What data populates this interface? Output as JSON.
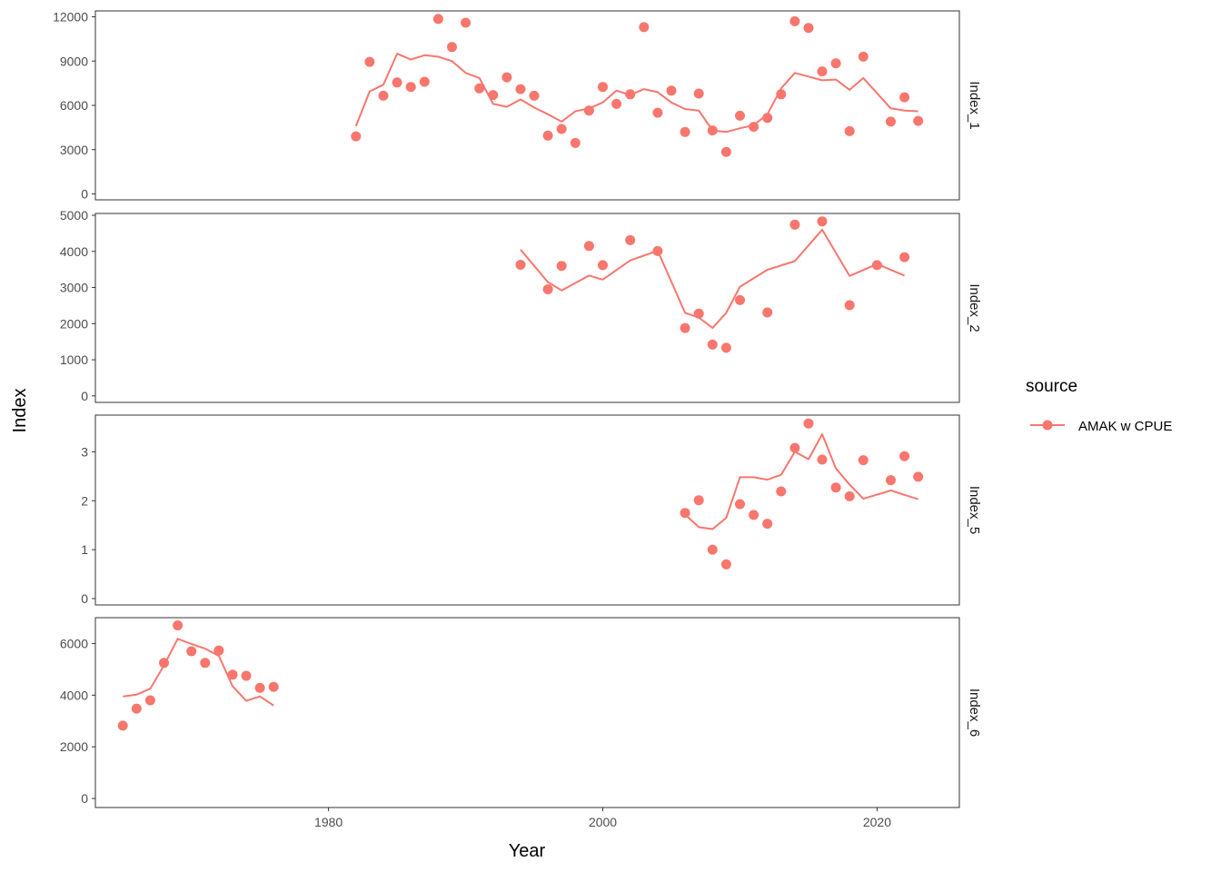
{
  "chart_data": {
    "type": "line",
    "xlabel": "Year",
    "ylabel": "Index",
    "xlim": [
      1963,
      2026
    ],
    "x_ticks": [
      "1980",
      "2000",
      "2020"
    ],
    "legend": {
      "title": "source",
      "placement": "right",
      "entries": [
        "AMAK w CPUE"
      ]
    },
    "color": "#F8766D",
    "panels": [
      {
        "name": "Index_1",
        "ylim": [
          -400,
          12400
        ],
        "y_ticks": [
          "0",
          "3000",
          "6000",
          "9000",
          "12000"
        ],
        "y_tick_values": [
          0,
          3000,
          6000,
          9000,
          12000
        ],
        "observed": [
          [
            1982,
            3900
          ],
          [
            1983,
            8950
          ],
          [
            1984,
            6650
          ],
          [
            1985,
            7550
          ],
          [
            1986,
            7250
          ],
          [
            1987,
            7600
          ],
          [
            1988,
            11850
          ],
          [
            1989,
            9950
          ],
          [
            1990,
            11600
          ],
          [
            1991,
            7150
          ],
          [
            1992,
            6700
          ],
          [
            1993,
            7900
          ],
          [
            1994,
            7100
          ],
          [
            1995,
            6650
          ],
          [
            1996,
            3950
          ],
          [
            1997,
            4400
          ],
          [
            1998,
            3450
          ],
          [
            1999,
            5650
          ],
          [
            2000,
            7250
          ],
          [
            2001,
            6100
          ],
          [
            2002,
            6750
          ],
          [
            2003,
            11300
          ],
          [
            2004,
            5500
          ],
          [
            2005,
            7000
          ],
          [
            2006,
            4200
          ],
          [
            2007,
            6800
          ],
          [
            2008,
            4300
          ],
          [
            2009,
            2850
          ],
          [
            2010,
            5300
          ],
          [
            2011,
            4550
          ],
          [
            2012,
            5150
          ],
          [
            2013,
            6750
          ],
          [
            2014,
            11700
          ],
          [
            2015,
            11250
          ],
          [
            2016,
            8300
          ],
          [
            2017,
            8850
          ],
          [
            2018,
            4250
          ],
          [
            2019,
            9300
          ],
          [
            2021,
            4900
          ],
          [
            2022,
            6550
          ],
          [
            2023,
            4950
          ]
        ],
        "fitted": [
          [
            1982,
            4600
          ],
          [
            1983,
            6950
          ],
          [
            1984,
            7400
          ],
          [
            1985,
            9500
          ],
          [
            1986,
            9100
          ],
          [
            1987,
            9400
          ],
          [
            1988,
            9300
          ],
          [
            1989,
            9000
          ],
          [
            1990,
            8200
          ],
          [
            1991,
            7850
          ],
          [
            1992,
            6100
          ],
          [
            1993,
            5900
          ],
          [
            1994,
            6400
          ],
          [
            1995,
            5850
          ],
          [
            1996,
            5400
          ],
          [
            1997,
            4900
          ],
          [
            1998,
            5600
          ],
          [
            1999,
            5800
          ],
          [
            2000,
            6200
          ],
          [
            2001,
            7000
          ],
          [
            2002,
            6700
          ],
          [
            2003,
            7100
          ],
          [
            2004,
            6900
          ],
          [
            2005,
            6200
          ],
          [
            2006,
            5750
          ],
          [
            2007,
            5650
          ],
          [
            2008,
            4300
          ],
          [
            2009,
            4200
          ],
          [
            2010,
            4450
          ],
          [
            2011,
            4650
          ],
          [
            2012,
            5400
          ],
          [
            2013,
            7150
          ],
          [
            2014,
            8200
          ],
          [
            2015,
            7950
          ],
          [
            2016,
            7700
          ],
          [
            2017,
            7750
          ],
          [
            2018,
            7050
          ],
          [
            2019,
            7850
          ],
          [
            2021,
            5800
          ],
          [
            2022,
            5650
          ],
          [
            2023,
            5600
          ]
        ]
      },
      {
        "name": "Index_2",
        "ylim": [
          -180,
          5050
        ],
        "y_ticks": [
          "0",
          "1000",
          "2000",
          "3000",
          "4000",
          "5000"
        ],
        "y_tick_values": [
          0,
          1000,
          2000,
          3000,
          4000,
          5000
        ],
        "observed": [
          [
            1994,
            3630
          ],
          [
            1996,
            2950
          ],
          [
            1997,
            3600
          ],
          [
            1999,
            4150
          ],
          [
            2000,
            3620
          ],
          [
            2002,
            4310
          ],
          [
            2004,
            4010
          ],
          [
            2006,
            1880
          ],
          [
            2007,
            2280
          ],
          [
            2008,
            1420
          ],
          [
            2009,
            1330
          ],
          [
            2010,
            2650
          ],
          [
            2012,
            2310
          ],
          [
            2014,
            4740
          ],
          [
            2016,
            4830
          ],
          [
            2018,
            2510
          ],
          [
            2020,
            3620
          ],
          [
            2022,
            3840
          ]
        ],
        "fitted": [
          [
            1994,
            4050
          ],
          [
            1996,
            3150
          ],
          [
            1997,
            2920
          ],
          [
            1999,
            3330
          ],
          [
            2000,
            3220
          ],
          [
            2002,
            3750
          ],
          [
            2004,
            4020
          ],
          [
            2006,
            2300
          ],
          [
            2007,
            2170
          ],
          [
            2008,
            1880
          ],
          [
            2009,
            2300
          ],
          [
            2010,
            3020
          ],
          [
            2012,
            3490
          ],
          [
            2014,
            3730
          ],
          [
            2016,
            4600
          ],
          [
            2018,
            3320
          ],
          [
            2020,
            3650
          ],
          [
            2022,
            3330
          ]
        ]
      },
      {
        "name": "Index_5",
        "ylim": [
          -0.13,
          3.75
        ],
        "y_ticks": [
          "0",
          "1",
          "2",
          "3"
        ],
        "y_tick_values": [
          0,
          1,
          2,
          3
        ],
        "observed": [
          [
            2006,
            1.75
          ],
          [
            2007,
            2.01
          ],
          [
            2008,
            1.0
          ],
          [
            2009,
            0.7
          ],
          [
            2010,
            1.93
          ],
          [
            2011,
            1.71
          ],
          [
            2012,
            1.53
          ],
          [
            2013,
            2.19
          ],
          [
            2014,
            3.08
          ],
          [
            2015,
            3.58
          ],
          [
            2016,
            2.84
          ],
          [
            2017,
            2.27
          ],
          [
            2018,
            2.09
          ],
          [
            2019,
            2.83
          ],
          [
            2021,
            2.42
          ],
          [
            2022,
            2.91
          ],
          [
            2023,
            2.49
          ]
        ],
        "fitted": [
          [
            2006,
            1.72
          ],
          [
            2007,
            1.46
          ],
          [
            2008,
            1.42
          ],
          [
            2009,
            1.65
          ],
          [
            2010,
            2.48
          ],
          [
            2011,
            2.48
          ],
          [
            2012,
            2.43
          ],
          [
            2013,
            2.53
          ],
          [
            2014,
            3.0
          ],
          [
            2015,
            2.85
          ],
          [
            2016,
            3.36
          ],
          [
            2017,
            2.66
          ],
          [
            2018,
            2.33
          ],
          [
            2019,
            2.04
          ],
          [
            2021,
            2.21
          ],
          [
            2022,
            2.12
          ],
          [
            2023,
            2.03
          ]
        ]
      },
      {
        "name": "Index_6",
        "ylim": [
          -350,
          7000
        ],
        "y_ticks": [
          "0",
          "2000",
          "4000",
          "6000"
        ],
        "y_tick_values": [
          0,
          2000,
          4000,
          6000
        ],
        "observed": [
          [
            1965,
            2820
          ],
          [
            1966,
            3480
          ],
          [
            1967,
            3800
          ],
          [
            1968,
            5250
          ],
          [
            1969,
            6700
          ],
          [
            1970,
            5700
          ],
          [
            1971,
            5250
          ],
          [
            1972,
            5730
          ],
          [
            1973,
            4790
          ],
          [
            1974,
            4750
          ],
          [
            1975,
            4280
          ],
          [
            1976,
            4320
          ]
        ],
        "fitted": [
          [
            1965,
            3950
          ],
          [
            1966,
            4020
          ],
          [
            1967,
            4250
          ],
          [
            1968,
            5150
          ],
          [
            1969,
            6180
          ],
          [
            1970,
            5980
          ],
          [
            1971,
            5800
          ],
          [
            1972,
            5520
          ],
          [
            1973,
            4350
          ],
          [
            1974,
            3780
          ],
          [
            1975,
            3950
          ],
          [
            1976,
            3600
          ]
        ]
      }
    ]
  }
}
